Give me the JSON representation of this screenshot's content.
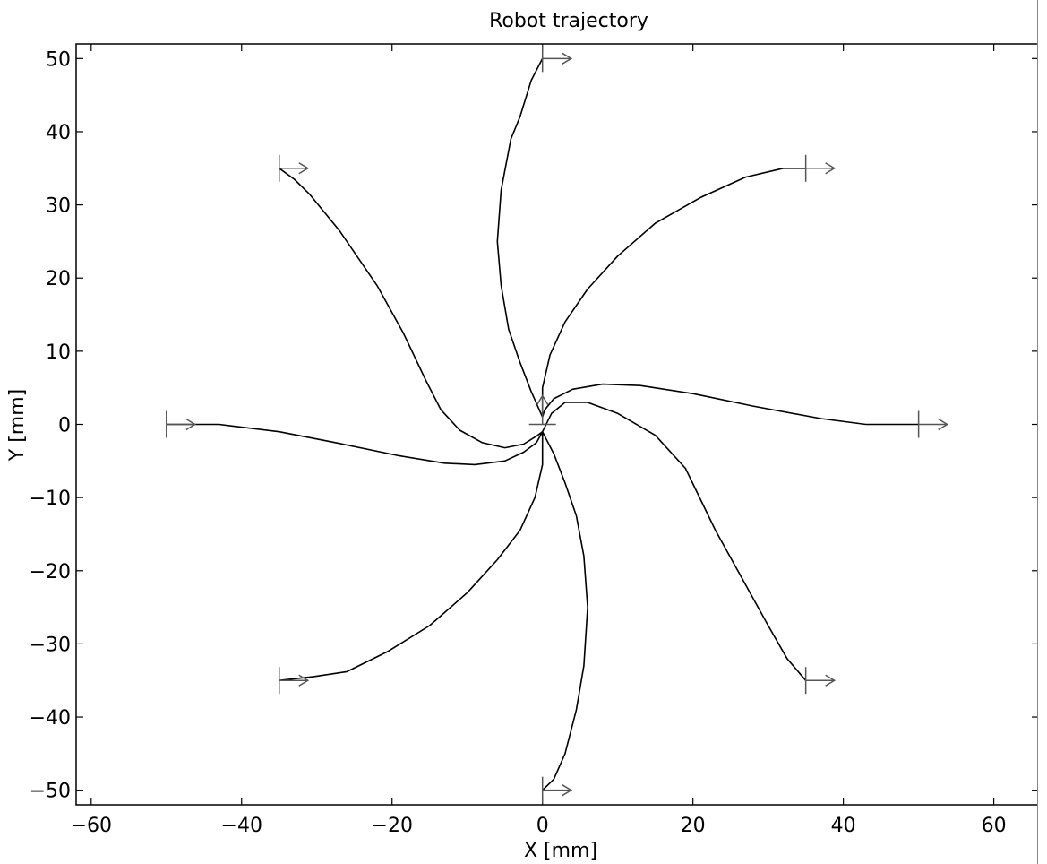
{
  "chart_data": {
    "type": "line",
    "title": "Robot trajectory",
    "xlabel": "X [mm]",
    "ylabel": "Y [mm]",
    "xlim": [
      -62,
      66
    ],
    "ylim": [
      -52,
      52
    ],
    "xticks": [
      -60,
      -40,
      -20,
      0,
      20,
      40,
      60
    ],
    "yticks": [
      50,
      40,
      30,
      20,
      10,
      0,
      -10,
      -20,
      -30,
      -40,
      -50
    ],
    "xtick_labels": [
      "−60",
      "−40",
      "−20",
      "0",
      "20",
      "40",
      "60"
    ],
    "ytick_labels": [
      "50",
      "40",
      "30",
      "20",
      "10",
      "0",
      "−10",
      "−20",
      "−30",
      "−40",
      "−50"
    ],
    "grid": false,
    "line_color": "#000000",
    "marker_color": "#555555",
    "target": [
      0,
      0
    ],
    "series": [
      {
        "start": [
          0,
          50
        ],
        "points": [
          [
            0,
            50
          ],
          [
            -1.5,
            47
          ],
          [
            -3,
            42
          ],
          [
            -4.2,
            39
          ],
          [
            -5.5,
            32
          ],
          [
            -6,
            25
          ],
          [
            -5.5,
            19
          ],
          [
            -4.5,
            13
          ],
          [
            -3,
            8.5
          ],
          [
            -1.5,
            4.5
          ],
          [
            0,
            1
          ]
        ]
      },
      {
        "start": [
          35,
          35
        ],
        "points": [
          [
            35,
            35
          ],
          [
            32,
            35
          ],
          [
            27,
            33.8
          ],
          [
            21,
            31
          ],
          [
            15,
            27.5
          ],
          [
            10,
            23
          ],
          [
            6,
            18.5
          ],
          [
            3,
            14
          ],
          [
            1,
            9.5
          ],
          [
            0,
            5
          ],
          [
            0,
            1
          ]
        ]
      },
      {
        "start": [
          50,
          0
        ],
        "points": [
          [
            50,
            0
          ],
          [
            43,
            0
          ],
          [
            37,
            0.8
          ],
          [
            28,
            2.5
          ],
          [
            20,
            4.2
          ],
          [
            13,
            5.3
          ],
          [
            8,
            5.5
          ],
          [
            4,
            4.8
          ],
          [
            1.5,
            3.5
          ],
          [
            0.3,
            2
          ],
          [
            0,
            1
          ]
        ]
      },
      {
        "start": [
          35,
          -35
        ],
        "points": [
          [
            35,
            -35
          ],
          [
            32.5,
            -32
          ],
          [
            30,
            -27.5
          ],
          [
            26.5,
            -21
          ],
          [
            23,
            -14.5
          ],
          [
            19,
            -6
          ],
          [
            15,
            -1.5
          ],
          [
            10,
            1.5
          ],
          [
            6,
            3
          ],
          [
            3,
            3
          ],
          [
            1.2,
            1.5
          ],
          [
            0,
            -1
          ]
        ]
      },
      {
        "start": [
          0,
          -50
        ],
        "points": [
          [
            0,
            -50
          ],
          [
            1.5,
            -48.5
          ],
          [
            3,
            -45
          ],
          [
            4.5,
            -39
          ],
          [
            5.5,
            -33
          ],
          [
            6,
            -25
          ],
          [
            5.5,
            -18
          ],
          [
            4.5,
            -12.5
          ],
          [
            3,
            -8
          ],
          [
            1.5,
            -4
          ],
          [
            0,
            -1
          ]
        ]
      },
      {
        "start": [
          -35,
          -35
        ],
        "points": [
          [
            -35,
            -35
          ],
          [
            -30.5,
            -34.5
          ],
          [
            -26,
            -33.8
          ],
          [
            -20.5,
            -31
          ],
          [
            -15,
            -27.5
          ],
          [
            -10,
            -23
          ],
          [
            -6,
            -18.5
          ],
          [
            -3,
            -14.5
          ],
          [
            -1,
            -10
          ],
          [
            0,
            -5.5
          ],
          [
            0,
            -1
          ]
        ]
      },
      {
        "start": [
          -50,
          0
        ],
        "points": [
          [
            -50,
            0
          ],
          [
            -43,
            0
          ],
          [
            -35,
            -1
          ],
          [
            -27,
            -2.6
          ],
          [
            -19,
            -4.3
          ],
          [
            -13,
            -5.3
          ],
          [
            -9,
            -5.5
          ],
          [
            -5,
            -5
          ],
          [
            -2.5,
            -3.8
          ],
          [
            -0.8,
            -2.5
          ],
          [
            0,
            -1
          ]
        ]
      },
      {
        "start": [
          -35,
          35
        ],
        "points": [
          [
            -35,
            35
          ],
          [
            -33,
            33.5
          ],
          [
            -31,
            31.5
          ],
          [
            -27,
            26.5
          ],
          [
            -22,
            19
          ],
          [
            -18.5,
            12.5
          ],
          [
            -15.5,
            6
          ],
          [
            -13.5,
            2
          ],
          [
            -11,
            -0.8
          ],
          [
            -8,
            -2.5
          ],
          [
            -5,
            -3.2
          ],
          [
            -2.5,
            -2.7
          ],
          [
            -0.8,
            -1.6
          ],
          [
            0,
            -1
          ]
        ]
      }
    ]
  }
}
